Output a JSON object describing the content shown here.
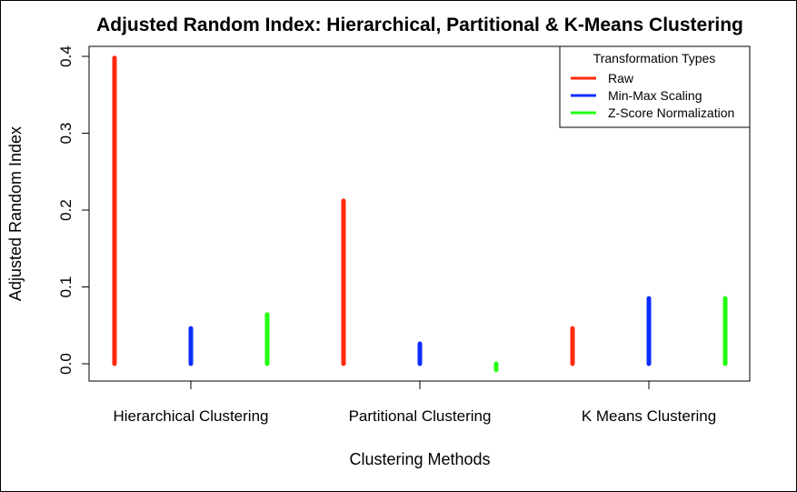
{
  "chart_data": {
    "type": "bar",
    "title": "Adjusted Random Index: Hierarchical, Partitional & K-Means Clustering",
    "xlabel": "Clustering Methods",
    "ylabel": "Adjusted Random Index",
    "categories": [
      "Hierarchical Clustering",
      "Partitional Clustering",
      "K Means Clustering"
    ],
    "yticks": [
      "0.0",
      "0.1",
      "0.2",
      "0.3",
      "0.4"
    ],
    "ylim": [
      -0.01,
      0.405
    ],
    "grid": false,
    "legend": {
      "title": "Transformation Types",
      "position": "top-right"
    },
    "series": [
      {
        "name": "Raw",
        "color": "#ff2a0e",
        "values": [
          0.398,
          0.212,
          0.046
        ]
      },
      {
        "name": "Min-Max Scaling",
        "color": "#0b2dff",
        "values": [
          0.046,
          0.026,
          0.085
        ]
      },
      {
        "name": "Z-Score Normalization",
        "color": "#22ff11",
        "values": [
          0.064,
          -0.008,
          0.085
        ]
      }
    ]
  }
}
